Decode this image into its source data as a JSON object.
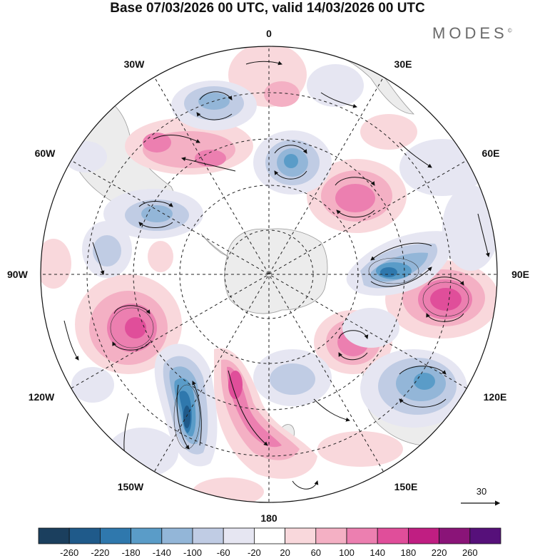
{
  "title": "Base 07/03/2026 00 UTC, valid 14/03/2026 00 UTC",
  "brand": {
    "name": "MODES",
    "mark": "©"
  },
  "longitude_labels": {
    "top": "0",
    "bottom": "180",
    "left": "90W",
    "right": "90E",
    "upper_left_1": "30W",
    "upper_left_2": "60W",
    "upper_right_1": "30E",
    "upper_right_2": "60E",
    "lower_left_1": "120W",
    "lower_left_2": "150W",
    "lower_right_1": "120E",
    "lower_right_2": "150E"
  },
  "vector_scale": {
    "label": "30"
  },
  "colorbar": {
    "ticks": [
      "-260",
      "-220",
      "-180",
      "-140",
      "-100",
      "-60",
      "-20",
      "20",
      "60",
      "100",
      "140",
      "180",
      "220",
      "260"
    ],
    "colors": [
      "#1b3f5e",
      "#1f5a8a",
      "#2f78ad",
      "#5a9cc8",
      "#93b6d8",
      "#c0cce4",
      "#e6e6f2",
      "#ffffff",
      "#f9d8dc",
      "#f4b0c4",
      "#ec7fb0",
      "#e04e9a",
      "#c01e82",
      "#8a1478",
      "#56107a"
    ]
  },
  "anomaly_centers": [
    {
      "name": "neg-atlantic-north",
      "value": -100
    },
    {
      "name": "neg-atlantic-central",
      "value": -140
    },
    {
      "name": "pos-south-atlantic",
      "value": 100
    },
    {
      "name": "neg-drake-passage",
      "value": -100
    },
    {
      "name": "pos-indian-ocean-west",
      "value": 100
    },
    {
      "name": "neg-indian-ocean",
      "value": -180
    },
    {
      "name": "pos-indian-ocean-east",
      "value": 180
    },
    {
      "name": "pos-south-of-australia",
      "value": 140
    },
    {
      "name": "neg-australia",
      "value": -140
    },
    {
      "name": "neg-ross-sea",
      "value": -60
    },
    {
      "name": "pos-southeast-pacific",
      "value": 140
    },
    {
      "name": "neg-south-pacific",
      "value": -220
    },
    {
      "name": "pos-new-zealand-sector",
      "value": 180
    },
    {
      "name": "neg-south-america-west",
      "value": -60
    },
    {
      "name": "pos-east-pacific-small",
      "value": 60
    }
  ]
}
